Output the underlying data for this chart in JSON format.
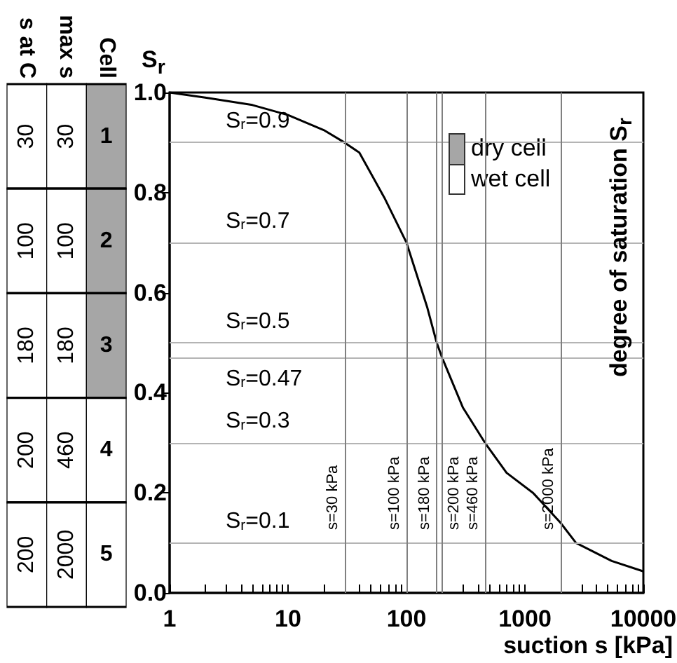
{
  "chart_data": [
    {
      "type": "heatmap",
      "categories": [
        "s at C",
        "max s",
        "Cell"
      ],
      "cells": [
        [
          30,
          30,
          1
        ],
        [
          100,
          100,
          2
        ],
        [
          180,
          180,
          3
        ],
        [
          200,
          460,
          4
        ],
        [
          200,
          2000,
          5
        ]
      ],
      "y_categories": [
        null,
        null,
        null,
        null,
        null
      ],
      "data_labels": true,
      "colors": [
        "#ffffff",
        "#ffffff",
        "#a6a6a6",
        "#ffffff",
        "#ffffff",
        "#a6a6a6",
        "#ffffff",
        "#ffffff",
        "#a6a6a6",
        "#ffffff",
        "#ffffff",
        "#ffffff",
        "#ffffff",
        "#ffffff",
        "#ffffff"
      ]
    },
    {
      "type": "line",
      "xlabel": "suction s [kPa]",
      "ylabel": "S$_{r}$",
      "y2label": "degree of saturation S$_{r}$",
      "annotations": [
        "dry cell",
        "wet cell"
      ],
      "log": "x",
      "grid": false,
      "marker": "none",
      "line_style": "solid",
      "series": [
        {
          "color": "#000000",
          "x": [
            1,
            2,
            5,
            10,
            20,
            30,
            40,
            65,
            100,
            150,
            180,
            200,
            300,
            460,
            700,
            1170,
            2000,
            2700,
            5400,
            10000
          ],
          "values": [
            1.0,
            0.99,
            0.975,
            0.955,
            0.925,
            0.9,
            0.88,
            0.79,
            0.7,
            0.57,
            0.5,
            0.47,
            0.37,
            0.3,
            0.24,
            0.2,
            0.14,
            0.1,
            0.064,
            0.043
          ]
        }
      ],
      "xlim": [
        1,
        10000
      ],
      "xticks": [
        1,
        {
          "value": 2,
          "label": null
        },
        {
          "value": 3,
          "label": null
        },
        {
          "value": 4,
          "label": null
        },
        {
          "value": 5,
          "label": null
        },
        {
          "value": 6,
          "label": null
        },
        {
          "value": 7,
          "label": null
        },
        {
          "value": 8,
          "label": null
        },
        {
          "value": 9,
          "label": null
        },
        10,
        {
          "value": 20,
          "label": null
        },
        {
          "value": 30,
          "label": null
        },
        {
          "value": 40,
          "label": null
        },
        {
          "value": 50,
          "label": null
        },
        {
          "value": 60,
          "label": null
        },
        {
          "value": 70,
          "label": null
        },
        {
          "value": 80,
          "label": null
        },
        {
          "value": 90,
          "label": null
        },
        100,
        {
          "value": 200,
          "label": null
        },
        {
          "value": 300,
          "label": null
        },
        {
          "value": 400,
          "label": null
        },
        {
          "value": 500,
          "label": null
        },
        {
          "value": 600,
          "label": null
        },
        {
          "value": 700,
          "label": null
        },
        {
          "value": 800,
          "label": null
        },
        {
          "value": 900,
          "label": null
        },
        1000,
        {
          "value": 2000,
          "label": null
        },
        {
          "value": 3000,
          "label": null
        },
        {
          "value": 4000,
          "label": null
        },
        {
          "value": 5000,
          "label": null
        },
        {
          "value": 6000,
          "label": null
        },
        {
          "value": 7000,
          "label": null
        },
        {
          "value": 8000,
          "label": null
        },
        {
          "value": 9000,
          "label": null
        },
        10000
      ],
      "ylim": [
        0,
        1
      ],
      "yticks": [
        {
          "value": 0,
          "label": "0.0"
        },
        {
          "value": 0.2,
          "label": "0.2"
        },
        {
          "value": 0.4,
          "label": "0.4"
        },
        {
          "value": 0.6,
          "label": "0.6"
        },
        {
          "value": 0.8,
          "label": "0.8"
        },
        {
          "value": 1,
          "label": "1.0"
        }
      ],
      "ref_lines": [
        {
          "axis": "y",
          "value": 0.9,
          "label": "S$_{r}$=0.9",
          "color": "#b4b4b4"
        },
        {
          "axis": "y",
          "value": 0.7,
          "label": "S$_{r}$=0.7",
          "color": "#b4b4b4"
        },
        {
          "axis": "y",
          "value": 0.5,
          "label": "S$_{r}$=0.5",
          "color": "#b4b4b4"
        },
        {
          "axis": "y",
          "value": 0.47,
          "label": "S$_{r}$=0.47",
          "color": "#b4b4b4"
        },
        {
          "axis": "y",
          "value": 0.3,
          "label": "S$_{r}$=0.3",
          "color": "#b4b4b4"
        },
        {
          "axis": "y",
          "value": 0.1,
          "label": "S$_{r}$=0.1",
          "color": "#b4b4b4"
        },
        {
          "axis": "x",
          "value": 30,
          "label": "s=30 kPa",
          "color": "#808080"
        },
        {
          "axis": "x",
          "value": 100,
          "label": "s=100 kPa",
          "color": "#808080"
        },
        {
          "axis": "x",
          "value": 180,
          "label": "s=180 kPa",
          "color": "#808080"
        },
        {
          "axis": "x",
          "value": 200,
          "label": "s=200 kPa",
          "color": "#808080"
        },
        {
          "axis": "x",
          "value": 460,
          "label": "s=460 kPa",
          "color": "#808080"
        },
        {
          "axis": "x",
          "value": 2000,
          "label": "s=2000 kPa",
          "color": "#808080"
        }
      ]
    }
  ]
}
